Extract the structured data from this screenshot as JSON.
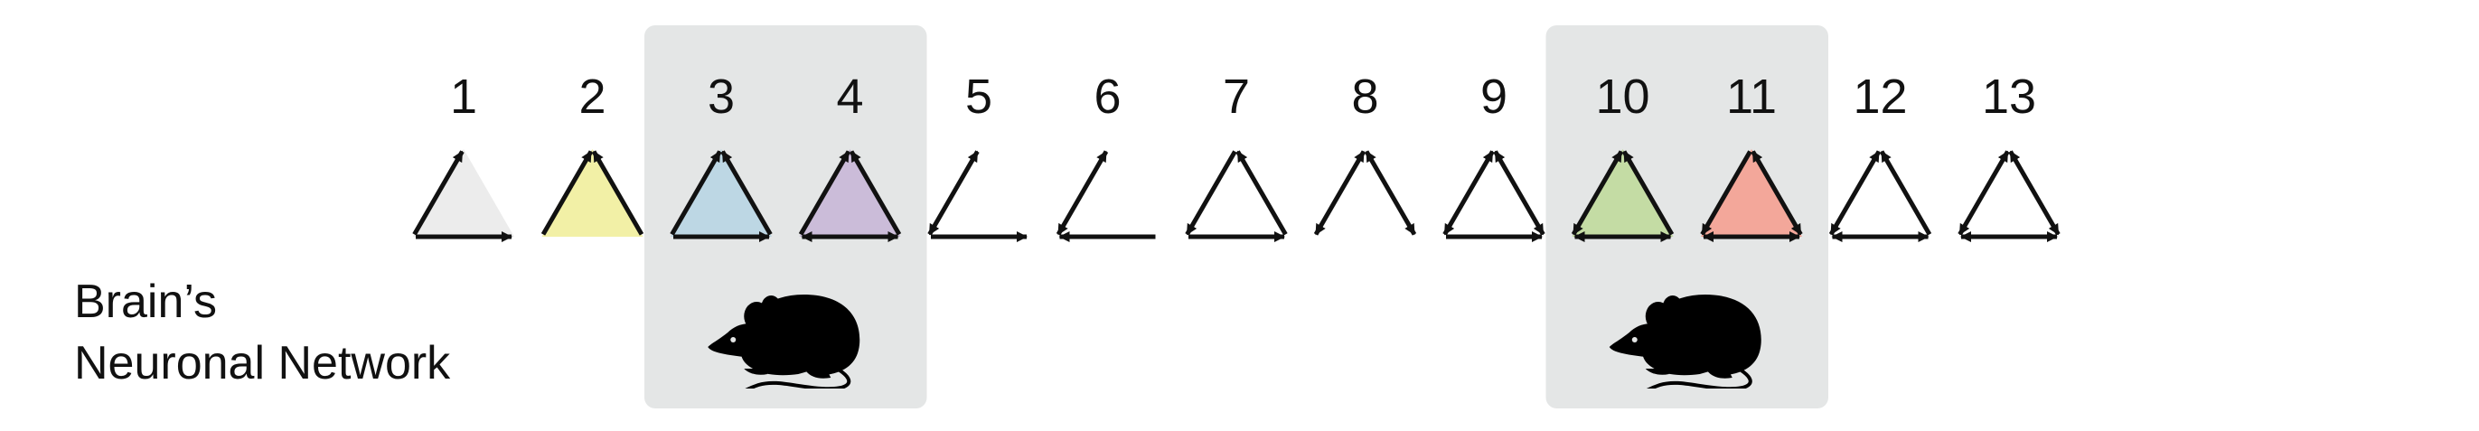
{
  "label": {
    "line1": "Brain’s",
    "line2": "Neuronal Network"
  },
  "highlight_color": "#e4e6e6",
  "motifs": [
    {
      "id": "1",
      "fill": "#ececec",
      "edges": [
        "B->A",
        "B->C"
      ]
    },
    {
      "id": "2",
      "fill": "#f2f0a6",
      "edges": [
        "B->A",
        "C->A"
      ]
    },
    {
      "id": "3",
      "fill": "#bdd7e4",
      "edges": [
        "B->A",
        "C->A",
        "B->C"
      ]
    },
    {
      "id": "4",
      "fill": "#cbbcd9",
      "edges": [
        "B->A",
        "C->A",
        "B<->C"
      ]
    },
    {
      "id": "5",
      "fill": "none",
      "edges": [
        "A<->B",
        "B->C"
      ]
    },
    {
      "id": "6",
      "fill": "none",
      "edges": [
        "A<->B",
        "C->B"
      ]
    },
    {
      "id": "7",
      "fill": "none",
      "edges": [
        "A->B",
        "B->C",
        "C->A"
      ]
    },
    {
      "id": "8",
      "fill": "none",
      "edges": [
        "A<->B",
        "A<->C"
      ]
    },
    {
      "id": "9",
      "fill": "none",
      "edges": [
        "A<->B",
        "B->C",
        "C<->A"
      ]
    },
    {
      "id": "10",
      "fill": "#c4dca4",
      "edges": [
        "A<->B",
        "B<->C",
        "C->A"
      ]
    },
    {
      "id": "11",
      "fill": "#f3a79a",
      "edges": [
        "A->B",
        "A<->C",
        "B<->C"
      ]
    },
    {
      "id": "12",
      "fill": "none",
      "edges": [
        "A<->B",
        "B<->C",
        "C->A"
      ]
    },
    {
      "id": "13",
      "fill": "none",
      "edges": [
        "A<->B",
        "B<->C",
        "C<->A"
      ]
    }
  ],
  "highlighted_motifs": [
    [
      "3",
      "4"
    ],
    [
      "10",
      "11"
    ]
  ],
  "icons": [
    "mouse-icon",
    "mouse-icon"
  ]
}
